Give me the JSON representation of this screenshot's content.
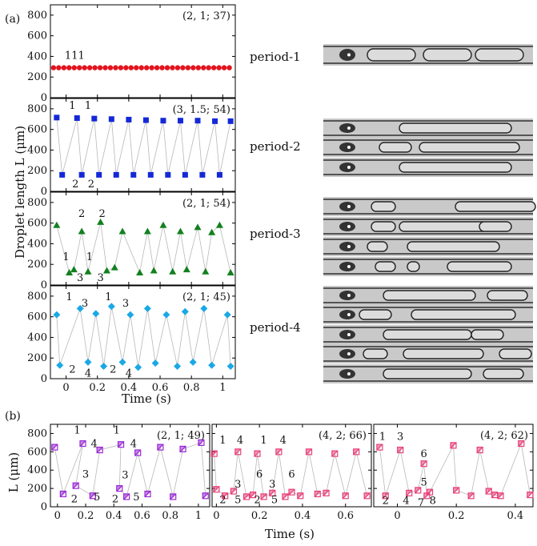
{
  "figure_labels": {
    "a": "(a)",
    "b": "(b)"
  },
  "axis_titles": {
    "a_y": "Droplet length L (μm)",
    "a_x": "Time (s)",
    "b_y": "L (μm)",
    "b_x": "Time (s)"
  },
  "period_labels": [
    "period-1",
    "period-2",
    "period-3",
    "period-4"
  ],
  "chart_data": [
    {
      "id": "a1",
      "type": "scatter",
      "annotation": "(2, 1; 37)",
      "xlim": [
        -0.1,
        1.08
      ],
      "ylim": [
        0,
        900
      ],
      "yticks": [
        "0",
        "200",
        "400",
        "600",
        "800"
      ],
      "color": "#e3141e",
      "marker": "circle",
      "x": [
        -0.08,
        -0.047,
        -0.014,
        0.019,
        0.052,
        0.085,
        0.118,
        0.151,
        0.184,
        0.217,
        0.25,
        0.283,
        0.316,
        0.349,
        0.382,
        0.415,
        0.448,
        0.481,
        0.514,
        0.547,
        0.58,
        0.613,
        0.646,
        0.679,
        0.712,
        0.745,
        0.778,
        0.811,
        0.844,
        0.877,
        0.91,
        0.943,
        0.976,
        1.009,
        1.042
      ],
      "y": [
        290,
        290,
        290,
        290,
        290,
        290,
        290,
        290,
        290,
        290,
        290,
        290,
        290,
        290,
        290,
        290,
        290,
        290,
        290,
        290,
        290,
        290,
        290,
        290,
        290,
        290,
        290,
        290,
        290,
        290,
        290,
        290,
        290,
        290,
        290
      ],
      "labels": [
        {
          "text": "111",
          "x": 0.055,
          "y": 375
        }
      ]
    },
    {
      "id": "a2",
      "type": "scatter",
      "annotation": "(3, 1.5; 54)",
      "xlim": [
        -0.1,
        1.08
      ],
      "ylim": [
        0,
        900
      ],
      "yticks": [
        "0",
        "200",
        "400",
        "600",
        "800"
      ],
      "color": "#1428d8",
      "marker": "square",
      "x": [
        -0.06,
        -0.025,
        0.07,
        0.1,
        0.18,
        0.21,
        0.29,
        0.32,
        0.4,
        0.43,
        0.51,
        0.54,
        0.62,
        0.65,
        0.73,
        0.76,
        0.84,
        0.87,
        0.95,
        0.98,
        1.05
      ],
      "y": [
        715,
        160,
        710,
        160,
        705,
        160,
        700,
        160,
        695,
        160,
        690,
        160,
        685,
        160,
        685,
        160,
        685,
        160,
        680,
        160,
        680
      ],
      "labels": [
        {
          "text": "1",
          "x": 0.04,
          "y": 800
        },
        {
          "text": "1",
          "x": 0.14,
          "y": 800
        },
        {
          "text": "2",
          "x": 0.06,
          "y": 40
        },
        {
          "text": "2",
          "x": 0.16,
          "y": 40
        }
      ]
    },
    {
      "id": "a3",
      "type": "scatter",
      "annotation": "(2, 1; 54)",
      "xlim": [
        -0.1,
        1.08
      ],
      "ylim": [
        0,
        900
      ],
      "yticks": [
        "0",
        "200",
        "400",
        "600",
        "800"
      ],
      "color": "#12801e",
      "marker": "triangle",
      "x": [
        -0.06,
        0.02,
        0.05,
        0.1,
        0.14,
        0.22,
        0.26,
        0.31,
        0.36,
        0.47,
        0.52,
        0.56,
        0.62,
        0.68,
        0.73,
        0.77,
        0.84,
        0.89,
        0.93,
        0.98,
        1.05
      ],
      "y": [
        580,
        120,
        150,
        520,
        130,
        610,
        140,
        170,
        520,
        120,
        520,
        140,
        580,
        130,
        520,
        150,
        560,
        130,
        510,
        580,
        120
      ],
      "labels": [
        {
          "text": "1",
          "x": 0.0,
          "y": 240
        },
        {
          "text": "2",
          "x": 0.1,
          "y": 660
        },
        {
          "text": "3",
          "x": 0.09,
          "y": 40
        },
        {
          "text": "1",
          "x": 0.15,
          "y": 240
        },
        {
          "text": "2",
          "x": 0.23,
          "y": 660
        },
        {
          "text": "3",
          "x": 0.22,
          "y": 40
        }
      ]
    },
    {
      "id": "a4",
      "type": "scatter",
      "annotation": "(2, 1; 45)",
      "xlim": [
        -0.1,
        1.08
      ],
      "ylim": [
        0,
        900
      ],
      "yticks": [
        "0",
        "200",
        "400",
        "600",
        "800"
      ],
      "color": "#1aa8e6",
      "marker": "diamond",
      "x": [
        -0.06,
        -0.04,
        0.09,
        0.14,
        0.19,
        0.24,
        0.29,
        0.36,
        0.41,
        0.46,
        0.52,
        0.57,
        0.64,
        0.71,
        0.76,
        0.81,
        0.88,
        0.93,
        1.03,
        1.05
      ],
      "y": [
        620,
        130,
        680,
        160,
        630,
        120,
        700,
        160,
        620,
        110,
        680,
        150,
        620,
        120,
        650,
        160,
        680,
        130,
        620,
        120
      ],
      "labels": [
        {
          "text": "1",
          "x": 0.02,
          "y": 760
        },
        {
          "text": "3",
          "x": 0.12,
          "y": 700
        },
        {
          "text": "2",
          "x": 0.04,
          "y": 60
        },
        {
          "text": "4",
          "x": 0.14,
          "y": 20
        },
        {
          "text": "1",
          "x": 0.27,
          "y": 760
        },
        {
          "text": "3",
          "x": 0.38,
          "y": 700
        },
        {
          "text": "2",
          "x": 0.3,
          "y": 60
        },
        {
          "text": "4",
          "x": 0.4,
          "y": 20
        }
      ]
    },
    {
      "id": "b1",
      "type": "scatter",
      "annotation": "(2, 1; 49)",
      "xlim": [
        -0.05,
        1.08
      ],
      "ylim": [
        0,
        900
      ],
      "xticks": [
        "0",
        "0.2",
        "0.4",
        "0.6",
        "0.8",
        "1"
      ],
      "yticks": [
        "0",
        "200",
        "400",
        "600",
        "800"
      ],
      "color": "#9a28d6",
      "marker": "square-hatch",
      "x": [
        -0.02,
        0.04,
        0.18,
        0.13,
        0.25,
        0.3,
        0.45,
        0.44,
        0.49,
        0.57,
        0.64,
        0.73,
        0.82,
        0.89,
        1.02,
        1.05
      ],
      "y": [
        650,
        140,
        690,
        230,
        120,
        620,
        680,
        200,
        110,
        590,
        140,
        650,
        110,
        630,
        700,
        120
      ],
      "labels": [
        {
          "text": "1",
          "x": 0.14,
          "y": 800
        },
        {
          "text": "4",
          "x": 0.26,
          "y": 650
        },
        {
          "text": "1",
          "x": 0.42,
          "y": 800
        },
        {
          "text": "4",
          "x": 0.54,
          "y": 650
        },
        {
          "text": "3",
          "x": 0.2,
          "y": 320
        },
        {
          "text": "2",
          "x": 0.12,
          "y": 50
        },
        {
          "text": "5",
          "x": 0.28,
          "y": 70
        },
        {
          "text": "3",
          "x": 0.48,
          "y": 310
        },
        {
          "text": "2",
          "x": 0.41,
          "y": 50
        },
        {
          "text": "5",
          "x": 0.56,
          "y": 70
        }
      ]
    },
    {
      "id": "b2",
      "type": "scatter",
      "annotation": "(4, 2; 66)",
      "xlim": [
        -0.02,
        0.72
      ],
      "ylim": [
        0,
        900
      ],
      "xticks": [
        "0",
        "0.2",
        "0.4",
        "0.6"
      ],
      "yticks": [],
      "color": "#e8407a",
      "marker": "square-hatch",
      "x": [
        -0.01,
        0.0,
        0.04,
        0.08,
        0.1,
        0.14,
        0.17,
        0.19,
        0.22,
        0.26,
        0.29,
        0.32,
        0.35,
        0.39,
        0.43,
        0.47,
        0.51,
        0.55,
        0.6,
        0.65,
        0.7
      ],
      "y": [
        580,
        190,
        120,
        170,
        600,
        110,
        130,
        580,
        110,
        150,
        600,
        110,
        160,
        120,
        600,
        140,
        150,
        580,
        120,
        600,
        120
      ],
      "labels": [
        {
          "text": "1",
          "x": 0.03,
          "y": 690
        },
        {
          "text": "4",
          "x": 0.11,
          "y": 690
        },
        {
          "text": "1",
          "x": 0.22,
          "y": 690
        },
        {
          "text": "4",
          "x": 0.31,
          "y": 690
        },
        {
          "text": "3",
          "x": 0.1,
          "y": 210
        },
        {
          "text": "6",
          "x": 0.2,
          "y": 320
        },
        {
          "text": "2",
          "x": 0.03,
          "y": 40
        },
        {
          "text": "5",
          "x": 0.1,
          "y": 40
        },
        {
          "text": "2",
          "x": 0.19,
          "y": 40
        },
        {
          "text": "3",
          "x": 0.26,
          "y": 210
        },
        {
          "text": "6",
          "x": 0.35,
          "y": 320
        },
        {
          "text": "5",
          "x": 0.27,
          "y": 40
        }
      ]
    },
    {
      "id": "b3",
      "type": "scatter",
      "annotation": "(4, 2; 62)",
      "xlim": [
        -0.08,
        0.46
      ],
      "ylim": [
        0,
        900
      ],
      "xticks": [
        "0",
        "0.2",
        "0.4"
      ],
      "yticks": [],
      "color": "#e8407a",
      "marker": "square-hatch",
      "x": [
        -0.06,
        -0.04,
        0.01,
        0.04,
        0.07,
        0.09,
        0.1,
        0.11,
        0.19,
        0.2,
        0.25,
        0.28,
        0.31,
        0.33,
        0.35,
        0.42,
        0.45
      ],
      "y": [
        650,
        120,
        620,
        150,
        180,
        470,
        120,
        160,
        670,
        180,
        120,
        620,
        170,
        130,
        120,
        690,
        130
      ],
      "labels": [
        {
          "text": "1",
          "x": -0.05,
          "y": 730
        },
        {
          "text": "3",
          "x": 0.01,
          "y": 730
        },
        {
          "text": "6",
          "x": 0.09,
          "y": 540
        },
        {
          "text": "2",
          "x": -0.04,
          "y": 30
        },
        {
          "text": "4",
          "x": 0.03,
          "y": 30
        },
        {
          "text": "5",
          "x": 0.09,
          "y": 230
        },
        {
          "text": "7",
          "x": 0.08,
          "y": 10
        },
        {
          "text": "8",
          "x": 0.12,
          "y": 30
        }
      ]
    }
  ]
}
